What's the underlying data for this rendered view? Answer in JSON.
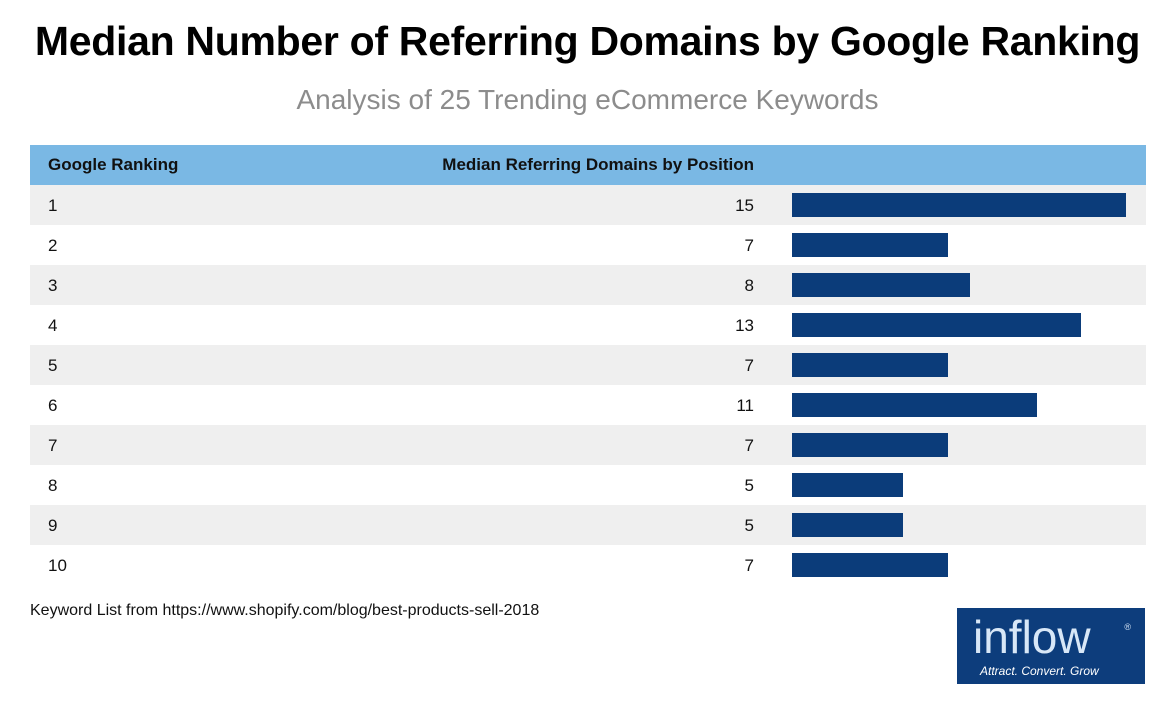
{
  "title": "Median Number of Referring Domains by Google Ranking",
  "subtitle": "Analysis of 25 Trending eCommerce Keywords",
  "footnote": "Keyword List from https://www.shopify.com/blog/best-products-sell-2018",
  "logo": {
    "brand": "inflow",
    "registered": "®",
    "tagline": "Attract. Convert. Grow"
  },
  "colors": {
    "header_bg": "#7ab8e4",
    "bar": "#0b3c7a",
    "alt_row": "#efefef",
    "logo_bg": "#0d3d7c"
  },
  "chart_data": {
    "type": "table",
    "title": "Median Number of Referring Domains by Google Ranking",
    "subtitle": "Analysis of 25 Trending eCommerce Keywords",
    "columns": [
      "Google Ranking",
      "Median Referring Domains by Position"
    ],
    "categories": [
      "1",
      "2",
      "3",
      "4",
      "5",
      "6",
      "7",
      "8",
      "9",
      "10"
    ],
    "values": [
      15,
      7,
      8,
      13,
      7,
      11,
      7,
      5,
      5,
      7
    ],
    "bar_max": 15
  }
}
